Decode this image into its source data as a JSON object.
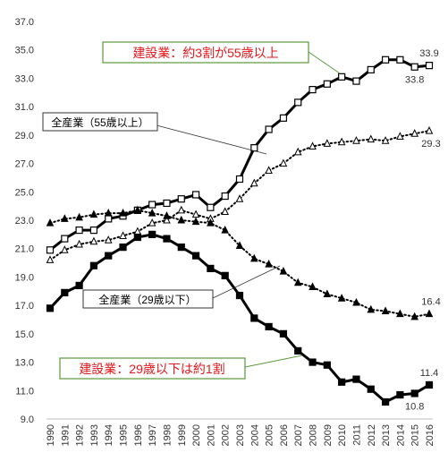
{
  "chart_data": {
    "type": "line",
    "x": [
      "1990",
      "1991",
      "1992",
      "1993",
      "1994",
      "1995",
      "1996",
      "1997",
      "1998",
      "1999",
      "2000",
      "2001",
      "2002",
      "2003",
      "2004",
      "2005",
      "2006",
      "2007",
      "2008",
      "2009",
      "2010",
      "2011",
      "2012",
      "2013",
      "2014",
      "2015",
      "2016"
    ],
    "ylim": [
      9.0,
      37.0
    ],
    "yticks": [
      "9.0",
      "11.0",
      "13.0",
      "15.0",
      "17.0",
      "19.0",
      "21.0",
      "23.0",
      "25.0",
      "27.0",
      "29.0",
      "31.0",
      "33.0",
      "35.0",
      "37.0"
    ],
    "grid": false,
    "series": [
      {
        "key": "construction_55",
        "style": "solid-thick",
        "marker": "open-square",
        "values": [
          20.9,
          21.7,
          22.3,
          22.3,
          23.1,
          23.3,
          23.7,
          24.1,
          24.2,
          24.5,
          24.8,
          23.9,
          24.7,
          25.9,
          28.1,
          29.4,
          30.2,
          31.3,
          32.2,
          32.6,
          33.1,
          32.8,
          33.6,
          34.3,
          34.3,
          33.8,
          33.9
        ]
      },
      {
        "key": "all_55",
        "style": "dotted",
        "marker": "open-triangle",
        "values": [
          20.2,
          20.9,
          21.3,
          21.5,
          21.6,
          21.9,
          22.2,
          22.8,
          23.0,
          23.7,
          23.4,
          23.1,
          23.6,
          24.5,
          25.6,
          26.5,
          27.0,
          27.8,
          28.2,
          28.4,
          28.5,
          28.6,
          28.7,
          28.6,
          28.9,
          29.1,
          29.3
        ]
      },
      {
        "key": "all_29",
        "style": "dotted",
        "marker": "filled-triangle",
        "values": [
          22.8,
          23.1,
          23.2,
          23.4,
          23.5,
          23.5,
          23.7,
          23.5,
          23.3,
          23.0,
          22.9,
          22.8,
          22.3,
          21.2,
          20.3,
          19.9,
          19.4,
          18.6,
          18.3,
          17.8,
          17.5,
          17.2,
          16.7,
          16.6,
          16.4,
          16.2,
          16.4
        ]
      },
      {
        "key": "construction_29",
        "style": "solid-thick",
        "marker": "filled-square",
        "values": [
          16.8,
          17.9,
          18.4,
          19.8,
          20.5,
          21.1,
          21.8,
          22.0,
          21.7,
          21.1,
          20.5,
          19.6,
          19.1,
          17.7,
          16.1,
          15.5,
          15.0,
          13.8,
          13.0,
          12.8,
          11.6,
          11.8,
          11.1,
          10.2,
          10.7,
          10.8,
          11.4
        ]
      }
    ],
    "data_labels": [
      {
        "series": "construction_55",
        "x": "2016",
        "text": "33.9",
        "pos": "above"
      },
      {
        "series": "construction_55",
        "x": "2015",
        "text": "33.8",
        "pos": "below"
      },
      {
        "series": "all_55",
        "x": "2016",
        "text": "29.3",
        "pos": "below-right"
      },
      {
        "series": "all_29",
        "x": "2016",
        "text": "16.4",
        "pos": "above-right"
      },
      {
        "series": "construction_29",
        "x": "2016",
        "text": "11.4",
        "pos": "above"
      },
      {
        "series": "construction_29",
        "x": "2015",
        "text": "10.8",
        "pos": "below"
      }
    ],
    "annotations": {
      "construction_55": "建設業：約3割が55歳以上",
      "all_55": "全産業（55歳以上）",
      "all_29": "全産業（29歳以下）",
      "construction_29": "建設業：29歳以下は約1割"
    }
  }
}
